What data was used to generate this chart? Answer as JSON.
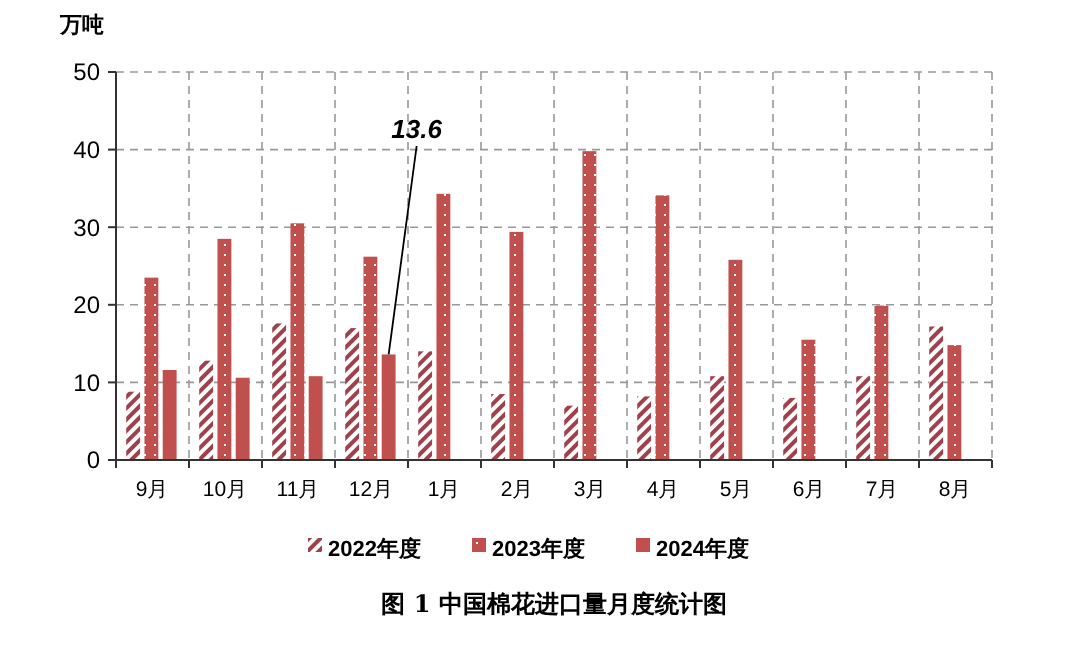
{
  "chart_data": {
    "type": "bar",
    "title": "图 1   中国棉花进口量月度统计图",
    "ylabel": "万吨",
    "categories": [
      "9月",
      "10月",
      "11月",
      "12月",
      "1月",
      "2月",
      "3月",
      "4月",
      "5月",
      "6月",
      "7月",
      "8月"
    ],
    "series": [
      {
        "name": "2022年度",
        "color": "#a0404a",
        "values": [
          8.8,
          12.8,
          17.6,
          17,
          14,
          8.5,
          7,
          8.2,
          10.8,
          8,
          10.8,
          17.2
        ]
      },
      {
        "name": "2023年度",
        "color": "#c0504d",
        "values": [
          23.5,
          28.5,
          30.5,
          26.2,
          34.3,
          29.4,
          39.8,
          34.1,
          25.8,
          15.5,
          19.9,
          14.8
        ]
      },
      {
        "name": "2024年度",
        "color": "#c0504d",
        "values": [
          11.6,
          10.6,
          10.8,
          13.6,
          null,
          null,
          null,
          null,
          null,
          null,
          null,
          null
        ],
        "value_labels": [
          null,
          null,
          null,
          "13.6",
          null,
          null,
          null,
          null,
          null,
          null,
          null,
          null
        ]
      }
    ],
    "ylim": [
      0,
      50
    ],
    "yticks": [
      0,
      10,
      20,
      30,
      40,
      50
    ],
    "grid": true,
    "legend": "bottom"
  }
}
